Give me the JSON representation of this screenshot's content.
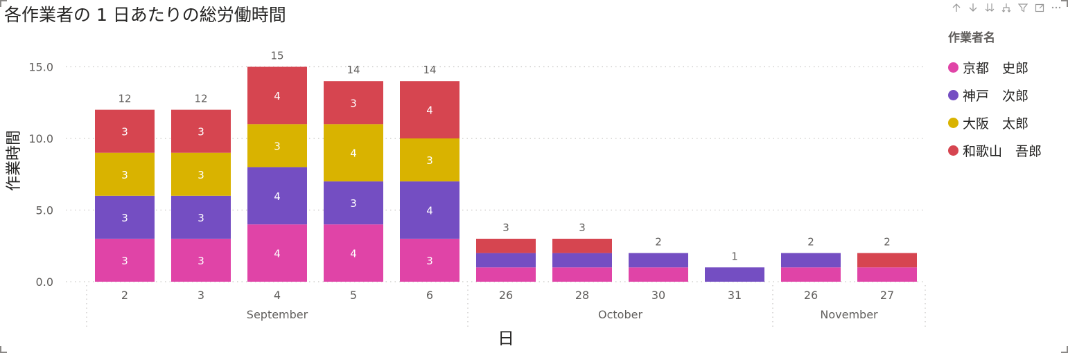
{
  "title": "各作業者の 1 日あたりの総労働時間",
  "colors": {
    "series": [
      "#E044A7",
      "#744EC2",
      "#D9B300",
      "#D64550"
    ],
    "text": "#605E5C",
    "grid": "#C8C6C4"
  },
  "toolbar": [
    {
      "name": "drill-up-icon"
    },
    {
      "name": "drill-down-icon"
    },
    {
      "name": "expand-next-level-icon"
    },
    {
      "name": "expand-hierarchy-icon"
    },
    {
      "name": "filter-icon"
    },
    {
      "name": "focus-mode-icon"
    },
    {
      "name": "more-options-icon"
    }
  ],
  "legend": {
    "title": "作業者名",
    "items": [
      "京都　史郎",
      "神戸　次郎",
      "大阪　太郎",
      "和歌山　吾郎"
    ]
  },
  "chart_data": {
    "type": "bar",
    "stacked": true,
    "xlabel": "日",
    "ylabel": "作業時間",
    "ylim": [
      0,
      16
    ],
    "yticks": [
      "0.0",
      "5.0",
      "10.0",
      "15.0"
    ],
    "grid": true,
    "legend_position": "right",
    "categories": [
      "2",
      "3",
      "4",
      "5",
      "6",
      "26",
      "28",
      "30",
      "31",
      "26",
      "27"
    ],
    "groups": [
      {
        "label": "September",
        "count": 5
      },
      {
        "label": "October",
        "count": 4
      },
      {
        "label": "November",
        "count": 2
      }
    ],
    "series": [
      {
        "name": "京都　史郎",
        "values": [
          3,
          3,
          4,
          4,
          3,
          1,
          1,
          1,
          0,
          1,
          1
        ]
      },
      {
        "name": "神戸　次郎",
        "values": [
          3,
          3,
          4,
          3,
          4,
          1,
          1,
          1,
          1,
          1,
          0
        ]
      },
      {
        "name": "大阪　太郎",
        "values": [
          3,
          3,
          3,
          4,
          3,
          0,
          0,
          0,
          0,
          0,
          0
        ]
      },
      {
        "name": "和歌山　吾郎",
        "values": [
          3,
          3,
          4,
          3,
          4,
          1,
          1,
          0,
          0,
          0,
          1
        ]
      }
    ],
    "totals": [
      12,
      12,
      15,
      14,
      14,
      3,
      3,
      2,
      1,
      2,
      2
    ]
  }
}
